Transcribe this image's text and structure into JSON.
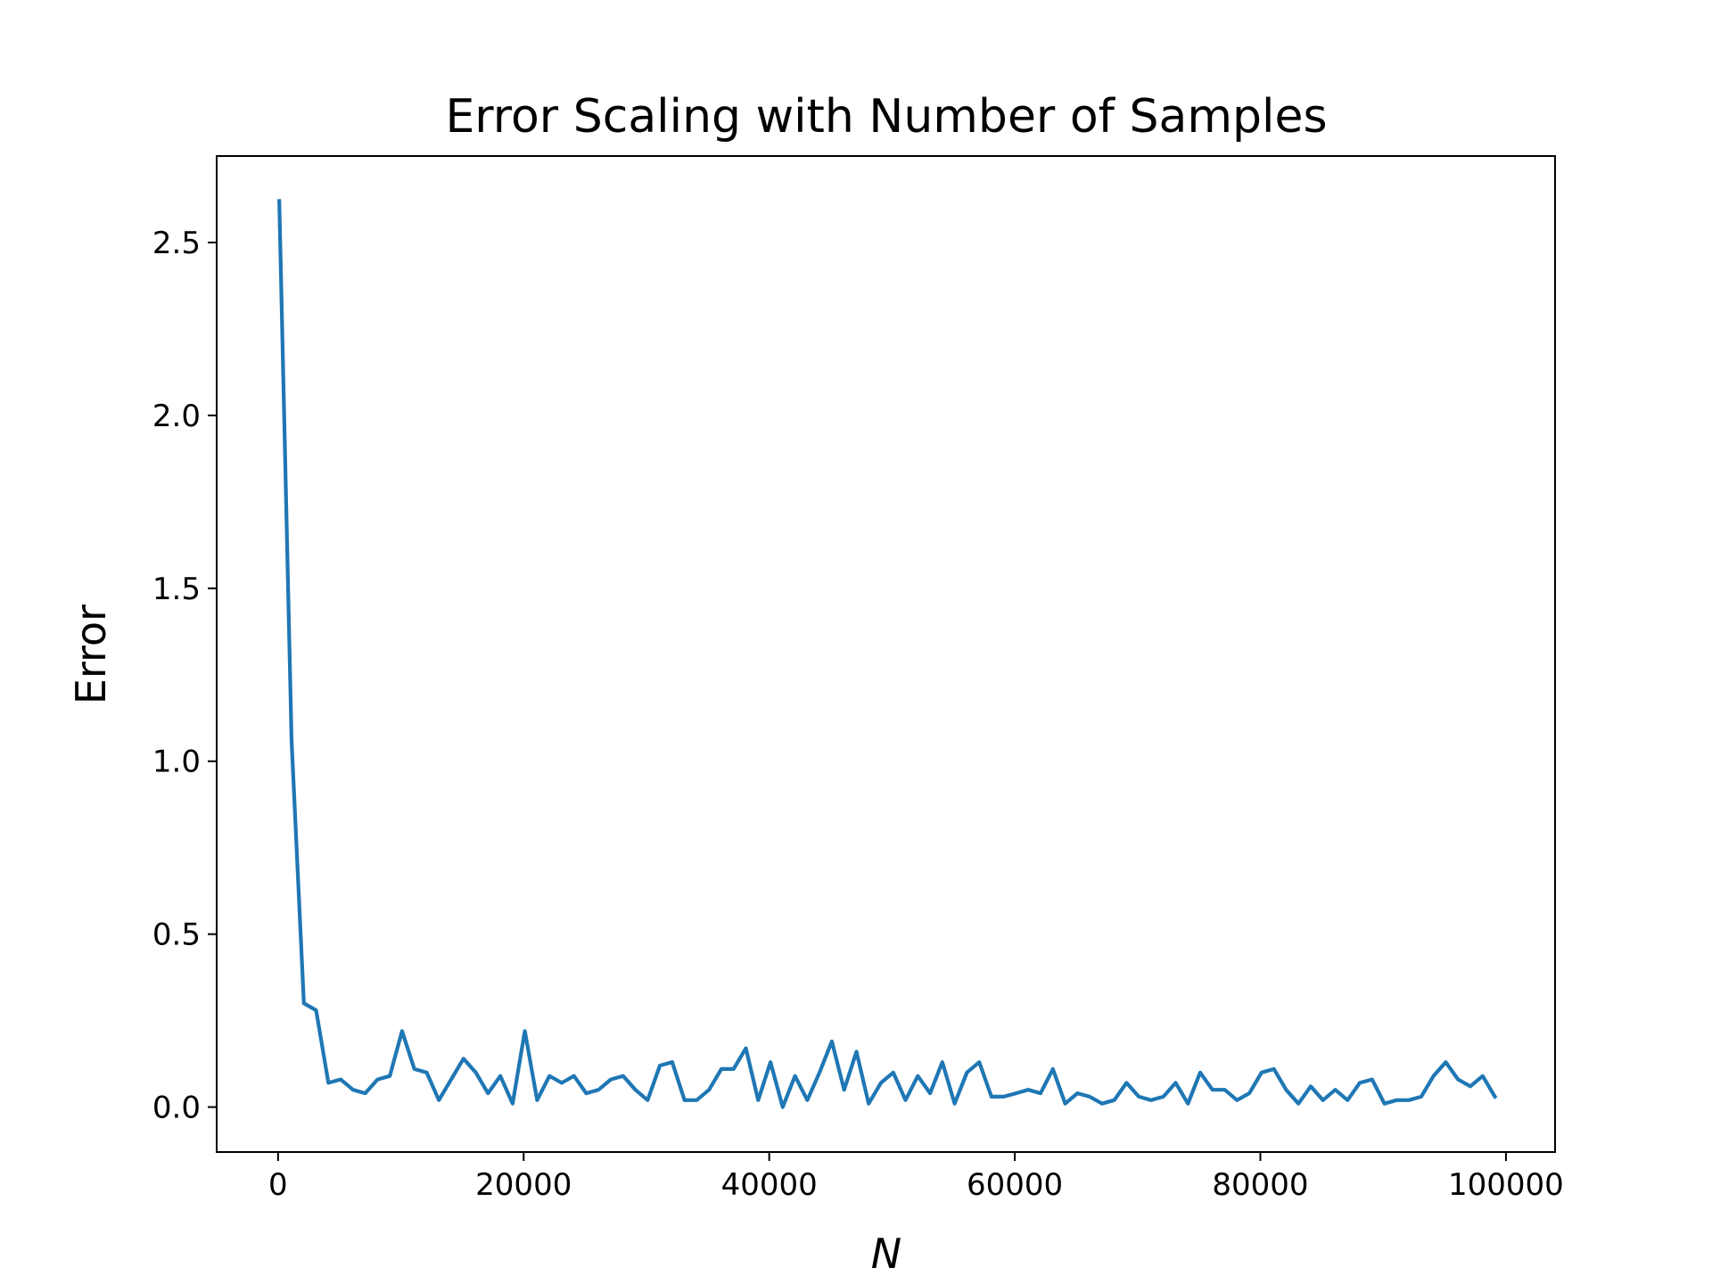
{
  "chart_data": {
    "type": "line",
    "title": "Error Scaling with Number of Samples",
    "xlabel": "N",
    "ylabel": "Error",
    "xlim": [
      -5000,
      104000
    ],
    "ylim": [
      -0.13,
      2.75
    ],
    "x_ticks": [
      0,
      20000,
      40000,
      60000,
      80000,
      100000
    ],
    "x_tick_labels": [
      "0",
      "20000",
      "40000",
      "60000",
      "80000",
      "100000"
    ],
    "y_ticks": [
      0.0,
      0.5,
      1.0,
      1.5,
      2.0,
      2.5
    ],
    "y_tick_labels": [
      "0.0",
      "0.5",
      "1.0",
      "1.5",
      "2.0",
      "2.5"
    ],
    "grid": false,
    "series": [
      {
        "color": "#1f77b4",
        "x": [
          100,
          1100,
          2100,
          3100,
          4100,
          5100,
          6100,
          7100,
          8100,
          9100,
          10100,
          11100,
          12100,
          13100,
          14100,
          15100,
          16100,
          17100,
          18100,
          19100,
          20100,
          21100,
          22100,
          23100,
          24100,
          25100,
          26100,
          27100,
          28100,
          29100,
          30100,
          31100,
          32100,
          33100,
          34100,
          35100,
          36100,
          37100,
          38100,
          39100,
          40100,
          41100,
          42100,
          43100,
          44100,
          45100,
          46100,
          47100,
          48100,
          49100,
          50100,
          51100,
          52100,
          53100,
          54100,
          55100,
          56100,
          57100,
          58100,
          59100,
          60100,
          61100,
          62100,
          63100,
          64100,
          65100,
          66100,
          67100,
          68100,
          69100,
          70100,
          71100,
          72100,
          73100,
          74100,
          75100,
          76100,
          77100,
          78100,
          79100,
          80100,
          81100,
          82100,
          83100,
          84100,
          85100,
          86100,
          87100,
          88100,
          89100,
          90100,
          91100,
          92100,
          93100,
          94100,
          95100,
          96100,
          97100,
          98100,
          99100
        ],
        "y": [
          2.62,
          1.06,
          0.3,
          0.28,
          0.07,
          0.08,
          0.05,
          0.04,
          0.08,
          0.09,
          0.22,
          0.11,
          0.1,
          0.02,
          0.08,
          0.14,
          0.1,
          0.04,
          0.09,
          0.01,
          0.22,
          0.02,
          0.09,
          0.07,
          0.09,
          0.04,
          0.05,
          0.08,
          0.09,
          0.05,
          0.02,
          0.12,
          0.13,
          0.02,
          0.02,
          0.05,
          0.11,
          0.11,
          0.17,
          0.02,
          0.13,
          0.0,
          0.09,
          0.02,
          0.1,
          0.19,
          0.05,
          0.16,
          0.01,
          0.07,
          0.1,
          0.02,
          0.09,
          0.04,
          0.13,
          0.01,
          0.1,
          0.13,
          0.03,
          0.03,
          0.04,
          0.05,
          0.04,
          0.11,
          0.01,
          0.04,
          0.03,
          0.01,
          0.02,
          0.07,
          0.03,
          0.02,
          0.03,
          0.07,
          0.01,
          0.1,
          0.05,
          0.05,
          0.02,
          0.04,
          0.1,
          0.11,
          0.05,
          0.01,
          0.06,
          0.02,
          0.05,
          0.02,
          0.07,
          0.08,
          0.01,
          0.02,
          0.02,
          0.03,
          0.09,
          0.13,
          0.08,
          0.06,
          0.09,
          0.03
        ]
      }
    ]
  }
}
